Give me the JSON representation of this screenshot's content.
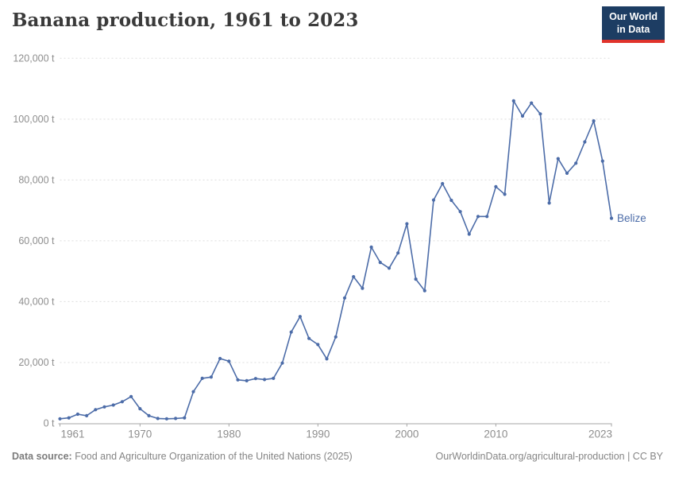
{
  "header": {
    "title": "Banana production, 1961 to 2023",
    "logo": {
      "line1": "Our World",
      "line2": "in Data"
    }
  },
  "footer": {
    "source_label": "Data source:",
    "source_text": " Food and Agriculture Organization of the United Nations (2025)",
    "credit": "OurWorldinData.org/agricultural-production | CC BY"
  },
  "colors": {
    "line": "#4C6CA8",
    "entity_label": "#4C6CA8",
    "logo_navy": "#1d3d63",
    "logo_red": "#e0332b",
    "gridline": "#dddddd",
    "axis": "#a5a5a5",
    "tick_text": "#8e8e8e",
    "title_text": "#3a3a3a",
    "footer_text": "#858585"
  },
  "chart_data": {
    "type": "line",
    "title": "Banana production, 1961 to 2023",
    "unit": "t",
    "entity_label": "Belize",
    "legend_position": "end-of-line label",
    "grid": "horizontal dashed",
    "ylim": [
      0,
      120000
    ],
    "ytick_values": [
      0,
      20000,
      40000,
      60000,
      80000,
      100000,
      120000
    ],
    "ytick_labels": [
      "0 t",
      "20,000 t",
      "40,000 t",
      "60,000 t",
      "80,000 t",
      "100,000 t",
      "120,000 t"
    ],
    "xticks": [
      1961,
      1970,
      1980,
      1990,
      2000,
      2010,
      2023
    ],
    "x": [
      1961,
      1962,
      1963,
      1964,
      1965,
      1966,
      1967,
      1968,
      1969,
      1970,
      1971,
      1972,
      1973,
      1974,
      1975,
      1976,
      1977,
      1978,
      1979,
      1980,
      1981,
      1982,
      1983,
      1984,
      1985,
      1986,
      1987,
      1988,
      1989,
      1990,
      1991,
      1992,
      1993,
      1994,
      1995,
      1996,
      1997,
      1998,
      1999,
      2000,
      2001,
      2002,
      2003,
      2004,
      2005,
      2006,
      2007,
      2008,
      2009,
      2010,
      2011,
      2012,
      2013,
      2014,
      2015,
      2016,
      2017,
      2018,
      2019,
      2020,
      2021,
      2022,
      2023
    ],
    "series": [
      {
        "name": "Belize",
        "values": [
          1500,
          1800,
          3000,
          2500,
          4500,
          5400,
          6000,
          7100,
          8800,
          4800,
          2500,
          1600,
          1500,
          1600,
          1800,
          10400,
          14800,
          15200,
          21300,
          20400,
          14300,
          14000,
          14700,
          14400,
          14800,
          19800,
          30000,
          35100,
          27900,
          25900,
          21200,
          28400,
          41200,
          48200,
          44400,
          57900,
          52900,
          51000,
          56000,
          65600,
          47400,
          43600,
          73400,
          78800,
          73300,
          69600,
          62200,
          68000,
          68000,
          77800,
          75300,
          106000,
          101000,
          105300,
          101700,
          72400,
          87000,
          82200,
          85500,
          92500,
          99400,
          86200,
          67400
        ]
      }
    ]
  }
}
